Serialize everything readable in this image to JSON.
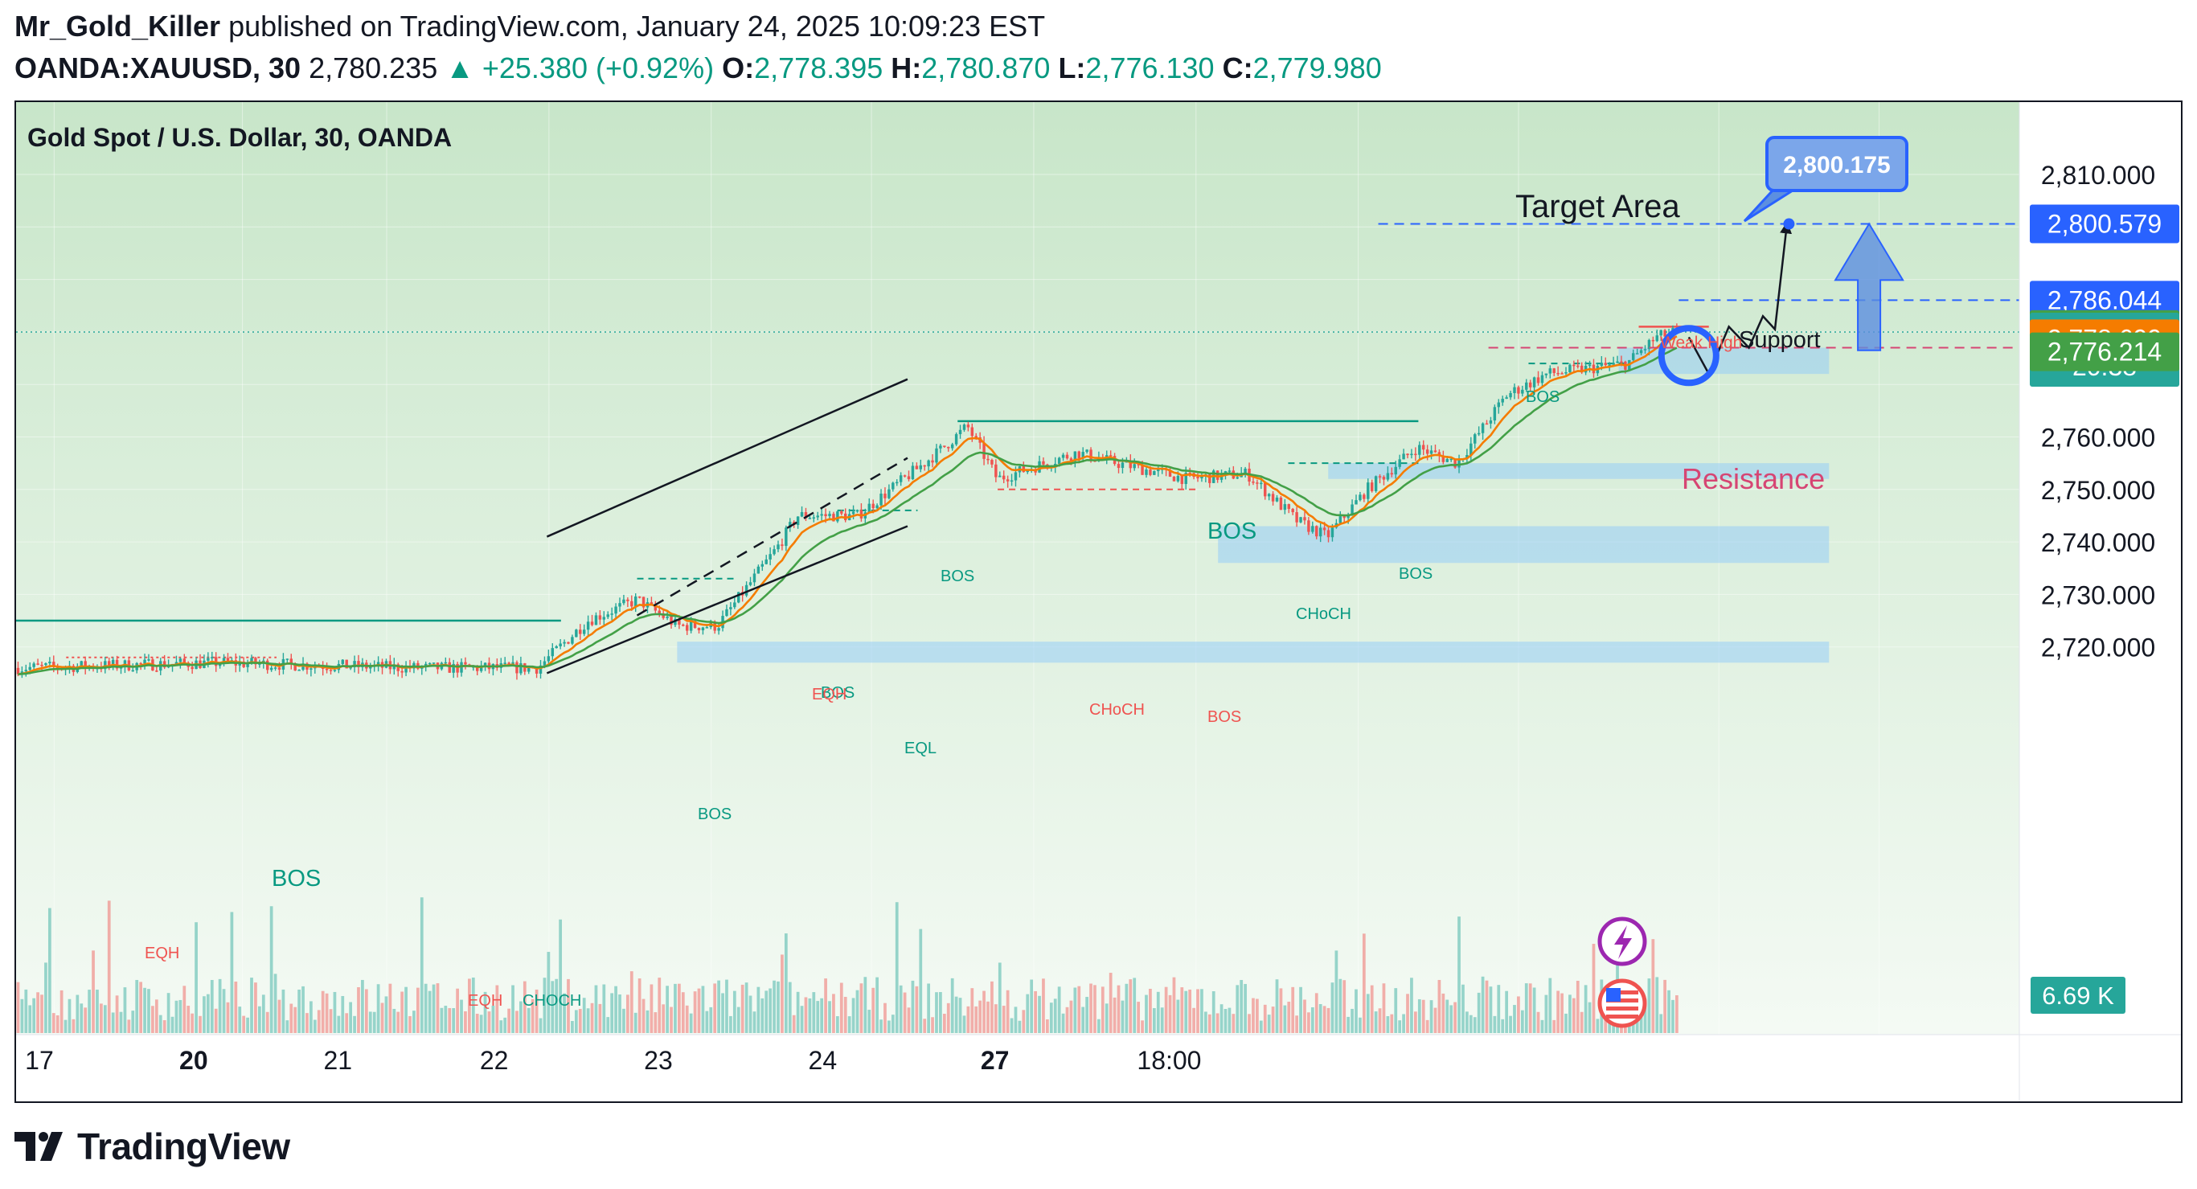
{
  "header": {
    "author": "Mr_Gold_Killer",
    "published": "published on TradingView.com, January 24, 2025 10:09:23 EST",
    "symbol": "OANDA:XAUUSD, 30",
    "last": "2,780.235",
    "change": "▲ +25.380 (+0.92%)",
    "o_label": "O:",
    "o": "2,778.395",
    "h_label": "H:",
    "h": "2,780.870",
    "l_label": "L:",
    "l": "2,776.130",
    "c_label": "C:",
    "c": "2,779.980"
  },
  "chart_title": "Gold Spot / U.S. Dollar, 30, OANDA",
  "brand": "TradingView",
  "colors": {
    "up": "#26a69a",
    "down": "#ef5350",
    "ema_fast": "#f57c00",
    "ema_slow": "#43a047",
    "zone": "#90caf9",
    "arrow": "#5c8fe0",
    "bg_top": "#c8e6c9",
    "bg_bottom": "#f4faf4"
  },
  "chart_data": {
    "type": "candlestick",
    "title": "Gold Spot / U.S. Dollar, 30, OANDA",
    "ylim": [
      2713,
      2813
    ],
    "y_ticks": [
      "2,810.000",
      "2,760.000",
      "2,750.000",
      "2,740.000",
      "2,730.000",
      "2,720.000"
    ],
    "y_tick_values": [
      2810,
      2760,
      2750,
      2740,
      2730,
      2720
    ],
    "x_ticks": [
      "17",
      "20",
      "21",
      "22",
      "23",
      "24",
      "27",
      "18:00"
    ],
    "price_anchors": [
      {
        "t": 0,
        "p": 2716
      },
      {
        "t": 0.1,
        "p": 2717
      },
      {
        "t": 0.2,
        "p": 2716
      },
      {
        "t": 0.26,
        "p": 2716
      },
      {
        "t": 0.285,
        "p": 2725
      },
      {
        "t": 0.31,
        "p": 2729
      },
      {
        "t": 0.33,
        "p": 2724
      },
      {
        "t": 0.35,
        "p": 2724
      },
      {
        "t": 0.38,
        "p": 2739
      },
      {
        "t": 0.39,
        "p": 2745
      },
      {
        "t": 0.42,
        "p": 2745
      },
      {
        "t": 0.43,
        "p": 2748
      },
      {
        "t": 0.46,
        "p": 2757
      },
      {
        "t": 0.475,
        "p": 2762
      },
      {
        "t": 0.49,
        "p": 2752
      },
      {
        "t": 0.53,
        "p": 2757
      },
      {
        "t": 0.55,
        "p": 2755
      },
      {
        "t": 0.585,
        "p": 2752
      },
      {
        "t": 0.615,
        "p": 2753
      },
      {
        "t": 0.64,
        "p": 2744
      },
      {
        "t": 0.655,
        "p": 2741
      },
      {
        "t": 0.675,
        "p": 2750
      },
      {
        "t": 0.7,
        "p": 2758
      },
      {
        "t": 0.72,
        "p": 2755
      },
      {
        "t": 0.745,
        "p": 2768
      },
      {
        "t": 0.765,
        "p": 2772
      },
      {
        "t": 0.805,
        "p": 2774
      },
      {
        "t": 0.82,
        "p": 2779
      },
      {
        "t": 0.83,
        "p": 2779.98
      }
    ],
    "price_labels": [
      {
        "label": "2,800.579",
        "value": 2800.579,
        "color": "#2962ff"
      },
      {
        "label": "2,786.044",
        "value": 2786.044,
        "color": "#2962ff"
      },
      {
        "label": "2,780.470",
        "value": 2780.47,
        "color": "#43a047"
      },
      {
        "label": "2,779.980",
        "value": 2779.98,
        "color": "#26a69a",
        "sub": "20:38"
      },
      {
        "label": "2,778.699",
        "value": 2778.699,
        "color": "#f57c00"
      },
      {
        "label": "2,776.214",
        "value": 2776.214,
        "color": "#43a047"
      }
    ],
    "volume_label": "6.69 K",
    "target_bubble": "2,800.175",
    "annotations": {
      "target_area": "Target Area",
      "support": "Support",
      "resistance": "Resistance",
      "weak_high": "Weak High",
      "bos": "BOS",
      "choch": "CHoCH",
      "choch_caps": "CHOCH",
      "eqh": "EQH",
      "eql": "EQL"
    },
    "zones": [
      {
        "from": 2772,
        "to": 2777
      },
      {
        "from": 2752,
        "to": 2755
      },
      {
        "from": 2736,
        "to": 2743
      },
      {
        "from": 2717,
        "to": 2721
      }
    ],
    "levels": {
      "target": 2800.579,
      "support": 2786.044,
      "resistance": 2777,
      "bos_upper": 2763,
      "bos_left": 2725
    }
  }
}
